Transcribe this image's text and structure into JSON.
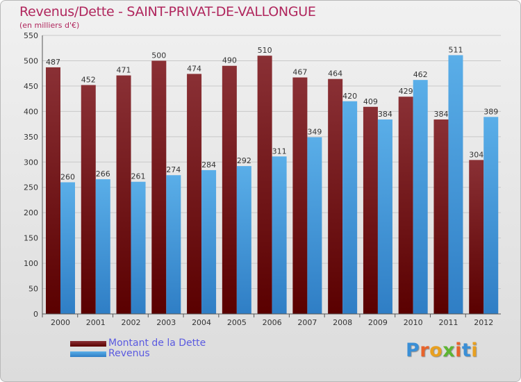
{
  "title": "Revenus/Dette - SAINT-PRIVAT-DE-VALLONGUE",
  "subtitle": "(en milliers d'€)",
  "legend": {
    "dette_label": "Montant de la Dette",
    "revenus_label": "Revenus"
  },
  "logo_text": "Proxiti",
  "colors": {
    "dette_top": "#8a3035",
    "dette_bottom": "#5a0000",
    "revenus_top": "#5aaee8",
    "revenus_bottom": "#2f7ec5",
    "title": "#b0265d",
    "legend_text": "#5a5ae0"
  },
  "chart_data": {
    "type": "bar",
    "title": "Revenus/Dette - SAINT-PRIVAT-DE-VALLONGUE",
    "subtitle": "(en milliers d'€)",
    "categories": [
      "2000",
      "2001",
      "2002",
      "2003",
      "2004",
      "2005",
      "2006",
      "2007",
      "2008",
      "2009",
      "2010",
      "2011",
      "2012"
    ],
    "series": [
      {
        "name": "Montant de la Dette",
        "values": [
          487,
          452,
          471,
          500,
          474,
          490,
          510,
          467,
          464,
          409,
          429,
          384,
          304
        ]
      },
      {
        "name": "Revenus",
        "values": [
          260,
          266,
          261,
          274,
          284,
          292,
          311,
          349,
          420,
          384,
          462,
          511,
          389
        ]
      }
    ],
    "ylim": [
      0,
      550
    ],
    "yticks": [
      0,
      50,
      100,
      150,
      200,
      250,
      300,
      350,
      400,
      450,
      500,
      550
    ],
    "grid": true,
    "legend_position": "bottom-left"
  }
}
